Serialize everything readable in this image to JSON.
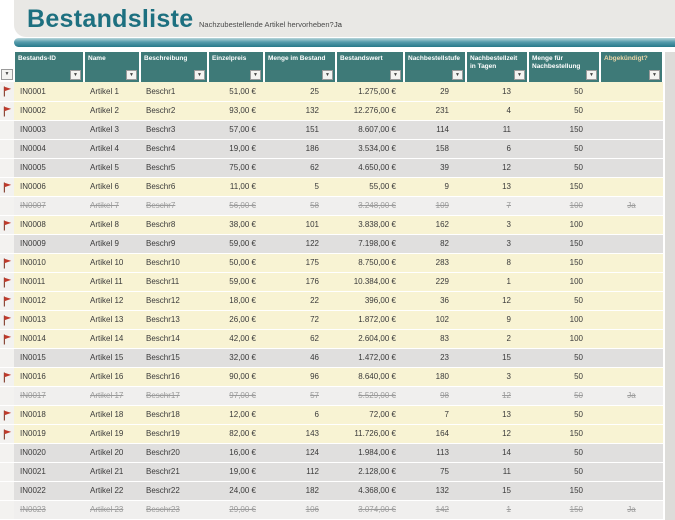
{
  "title": "Bestandsliste",
  "highlight_question": {
    "label": "Nachzubestellende Artikel hervorheben?",
    "answer": "Ja"
  },
  "colors": {
    "title_teal": "#1d7080",
    "header_teal": "#3e7a78",
    "accent_bar_teal": "#2c8193",
    "highlight_yellow": "#f8f3d3",
    "band_gray": "#e0dfde",
    "discontinued_gray": "#f0efee",
    "flag_red": "#c0392b"
  },
  "table": {
    "filter_icon": "▼",
    "flag_icon_name": "reorder-flag-icon",
    "columns": [
      {
        "key": "id",
        "label": "Bestands-ID",
        "align": "left"
      },
      {
        "key": "name",
        "label": "Name",
        "align": "left"
      },
      {
        "key": "beschreibung",
        "label": "Beschreibung",
        "align": "left"
      },
      {
        "key": "einzelpreis",
        "label": "Einzelpreis",
        "align": "money"
      },
      {
        "key": "menge_im_bestand",
        "label": "Menge im Bestand",
        "align": "count"
      },
      {
        "key": "bestandswert",
        "label": "Bestandswert",
        "align": "money"
      },
      {
        "key": "nachbestellstufe",
        "label": "Nachbestellstufe",
        "align": "count"
      },
      {
        "key": "nachbestellzeit",
        "label": "Nachbestellzeit in Tagen",
        "align": "count"
      },
      {
        "key": "menge_nachbestellung",
        "label": "Menge für Nachbestellung",
        "align": "count"
      },
      {
        "key": "abgekuendigt",
        "label": "Abgekündigt?",
        "align": "center",
        "header_tint": true
      }
    ],
    "rows": [
      {
        "id": "IN0001",
        "name": "Artikel 1",
        "beschreibung": "Beschr1",
        "einzelpreis": "51,00 €",
        "menge_im_bestand": "25",
        "bestandswert": "1.275,00 €",
        "nachbestellstufe": "29",
        "nachbestellzeit": "13",
        "menge_nachbestellung": "50",
        "abgekuendigt": "",
        "flagged": true,
        "discontinued": false
      },
      {
        "id": "IN0002",
        "name": "Artikel 2",
        "beschreibung": "Beschr2",
        "einzelpreis": "93,00 €",
        "menge_im_bestand": "132",
        "bestandswert": "12.276,00 €",
        "nachbestellstufe": "231",
        "nachbestellzeit": "4",
        "menge_nachbestellung": "50",
        "abgekuendigt": "",
        "flagged": true,
        "discontinued": false
      },
      {
        "id": "IN0003",
        "name": "Artikel 3",
        "beschreibung": "Beschr3",
        "einzelpreis": "57,00 €",
        "menge_im_bestand": "151",
        "bestandswert": "8.607,00 €",
        "nachbestellstufe": "114",
        "nachbestellzeit": "11",
        "menge_nachbestellung": "150",
        "abgekuendigt": "",
        "flagged": false,
        "discontinued": false
      },
      {
        "id": "IN0004",
        "name": "Artikel 4",
        "beschreibung": "Beschr4",
        "einzelpreis": "19,00 €",
        "menge_im_bestand": "186",
        "bestandswert": "3.534,00 €",
        "nachbestellstufe": "158",
        "nachbestellzeit": "6",
        "menge_nachbestellung": "50",
        "abgekuendigt": "",
        "flagged": false,
        "discontinued": false
      },
      {
        "id": "IN0005",
        "name": "Artikel 5",
        "beschreibung": "Beschr5",
        "einzelpreis": "75,00 €",
        "menge_im_bestand": "62",
        "bestandswert": "4.650,00 €",
        "nachbestellstufe": "39",
        "nachbestellzeit": "12",
        "menge_nachbestellung": "50",
        "abgekuendigt": "",
        "flagged": false,
        "discontinued": false
      },
      {
        "id": "IN0006",
        "name": "Artikel 6",
        "beschreibung": "Beschr6",
        "einzelpreis": "11,00 €",
        "menge_im_bestand": "5",
        "bestandswert": "55,00 €",
        "nachbestellstufe": "9",
        "nachbestellzeit": "13",
        "menge_nachbestellung": "150",
        "abgekuendigt": "",
        "flagged": true,
        "discontinued": false
      },
      {
        "id": "IN0007",
        "name": "Artikel 7",
        "beschreibung": "Beschr7",
        "einzelpreis": "56,00 €",
        "menge_im_bestand": "58",
        "bestandswert": "3.248,00 €",
        "nachbestellstufe": "109",
        "nachbestellzeit": "7",
        "menge_nachbestellung": "100",
        "abgekuendigt": "Ja",
        "flagged": false,
        "discontinued": true
      },
      {
        "id": "IN0008",
        "name": "Artikel 8",
        "beschreibung": "Beschr8",
        "einzelpreis": "38,00 €",
        "menge_im_bestand": "101",
        "bestandswert": "3.838,00 €",
        "nachbestellstufe": "162",
        "nachbestellzeit": "3",
        "menge_nachbestellung": "100",
        "abgekuendigt": "",
        "flagged": true,
        "discontinued": false
      },
      {
        "id": "IN0009",
        "name": "Artikel 9",
        "beschreibung": "Beschr9",
        "einzelpreis": "59,00 €",
        "menge_im_bestand": "122",
        "bestandswert": "7.198,00 €",
        "nachbestellstufe": "82",
        "nachbestellzeit": "3",
        "menge_nachbestellung": "150",
        "abgekuendigt": "",
        "flagged": false,
        "discontinued": false
      },
      {
        "id": "IN0010",
        "name": "Artikel 10",
        "beschreibung": "Beschr10",
        "einzelpreis": "50,00 €",
        "menge_im_bestand": "175",
        "bestandswert": "8.750,00 €",
        "nachbestellstufe": "283",
        "nachbestellzeit": "8",
        "menge_nachbestellung": "150",
        "abgekuendigt": "",
        "flagged": true,
        "discontinued": false
      },
      {
        "id": "IN0011",
        "name": "Artikel 11",
        "beschreibung": "Beschr11",
        "einzelpreis": "59,00 €",
        "menge_im_bestand": "176",
        "bestandswert": "10.384,00 €",
        "nachbestellstufe": "229",
        "nachbestellzeit": "1",
        "menge_nachbestellung": "100",
        "abgekuendigt": "",
        "flagged": true,
        "discontinued": false
      },
      {
        "id": "IN0012",
        "name": "Artikel 12",
        "beschreibung": "Beschr12",
        "einzelpreis": "18,00 €",
        "menge_im_bestand": "22",
        "bestandswert": "396,00 €",
        "nachbestellstufe": "36",
        "nachbestellzeit": "12",
        "menge_nachbestellung": "50",
        "abgekuendigt": "",
        "flagged": true,
        "discontinued": false
      },
      {
        "id": "IN0013",
        "name": "Artikel 13",
        "beschreibung": "Beschr13",
        "einzelpreis": "26,00 €",
        "menge_im_bestand": "72",
        "bestandswert": "1.872,00 €",
        "nachbestellstufe": "102",
        "nachbestellzeit": "9",
        "menge_nachbestellung": "100",
        "abgekuendigt": "",
        "flagged": true,
        "discontinued": false
      },
      {
        "id": "IN0014",
        "name": "Artikel 14",
        "beschreibung": "Beschr14",
        "einzelpreis": "42,00 €",
        "menge_im_bestand": "62",
        "bestandswert": "2.604,00 €",
        "nachbestellstufe": "83",
        "nachbestellzeit": "2",
        "menge_nachbestellung": "100",
        "abgekuendigt": "",
        "flagged": true,
        "discontinued": false
      },
      {
        "id": "IN0015",
        "name": "Artikel 15",
        "beschreibung": "Beschr15",
        "einzelpreis": "32,00 €",
        "menge_im_bestand": "46",
        "bestandswert": "1.472,00 €",
        "nachbestellstufe": "23",
        "nachbestellzeit": "15",
        "menge_nachbestellung": "50",
        "abgekuendigt": "",
        "flagged": false,
        "discontinued": false
      },
      {
        "id": "IN0016",
        "name": "Artikel 16",
        "beschreibung": "Beschr16",
        "einzelpreis": "90,00 €",
        "menge_im_bestand": "96",
        "bestandswert": "8.640,00 €",
        "nachbestellstufe": "180",
        "nachbestellzeit": "3",
        "menge_nachbestellung": "50",
        "abgekuendigt": "",
        "flagged": true,
        "discontinued": false
      },
      {
        "id": "IN0017",
        "name": "Artikel 17",
        "beschreibung": "Beschr17",
        "einzelpreis": "97,00 €",
        "menge_im_bestand": "57",
        "bestandswert": "5.529,00 €",
        "nachbestellstufe": "98",
        "nachbestellzeit": "12",
        "menge_nachbestellung": "50",
        "abgekuendigt": "Ja",
        "flagged": false,
        "discontinued": true
      },
      {
        "id": "IN0018",
        "name": "Artikel 18",
        "beschreibung": "Beschr18",
        "einzelpreis": "12,00 €",
        "menge_im_bestand": "6",
        "bestandswert": "72,00 €",
        "nachbestellstufe": "7",
        "nachbestellzeit": "13",
        "menge_nachbestellung": "50",
        "abgekuendigt": "",
        "flagged": true,
        "discontinued": false
      },
      {
        "id": "IN0019",
        "name": "Artikel 19",
        "beschreibung": "Beschr19",
        "einzelpreis": "82,00 €",
        "menge_im_bestand": "143",
        "bestandswert": "11.726,00 €",
        "nachbestellstufe": "164",
        "nachbestellzeit": "12",
        "menge_nachbestellung": "150",
        "abgekuendigt": "",
        "flagged": true,
        "discontinued": false
      },
      {
        "id": "IN0020",
        "name": "Artikel 20",
        "beschreibung": "Beschr20",
        "einzelpreis": "16,00 €",
        "menge_im_bestand": "124",
        "bestandswert": "1.984,00 €",
        "nachbestellstufe": "113",
        "nachbestellzeit": "14",
        "menge_nachbestellung": "50",
        "abgekuendigt": "",
        "flagged": false,
        "discontinued": false
      },
      {
        "id": "IN0021",
        "name": "Artikel 21",
        "beschreibung": "Beschr21",
        "einzelpreis": "19,00 €",
        "menge_im_bestand": "112",
        "bestandswert": "2.128,00 €",
        "nachbestellstufe": "75",
        "nachbestellzeit": "11",
        "menge_nachbestellung": "50",
        "abgekuendigt": "",
        "flagged": false,
        "discontinued": false
      },
      {
        "id": "IN0022",
        "name": "Artikel 22",
        "beschreibung": "Beschr22",
        "einzelpreis": "24,00 €",
        "menge_im_bestand": "182",
        "bestandswert": "4.368,00 €",
        "nachbestellstufe": "132",
        "nachbestellzeit": "15",
        "menge_nachbestellung": "150",
        "abgekuendigt": "",
        "flagged": false,
        "discontinued": false
      },
      {
        "id": "IN0023",
        "name": "Artikel 23",
        "beschreibung": "Beschr23",
        "einzelpreis": "29,00 €",
        "menge_im_bestand": "106",
        "bestandswert": "3.074,00 €",
        "nachbestellstufe": "142",
        "nachbestellzeit": "1",
        "menge_nachbestellung": "150",
        "abgekuendigt": "Ja",
        "flagged": false,
        "discontinued": true
      }
    ]
  }
}
